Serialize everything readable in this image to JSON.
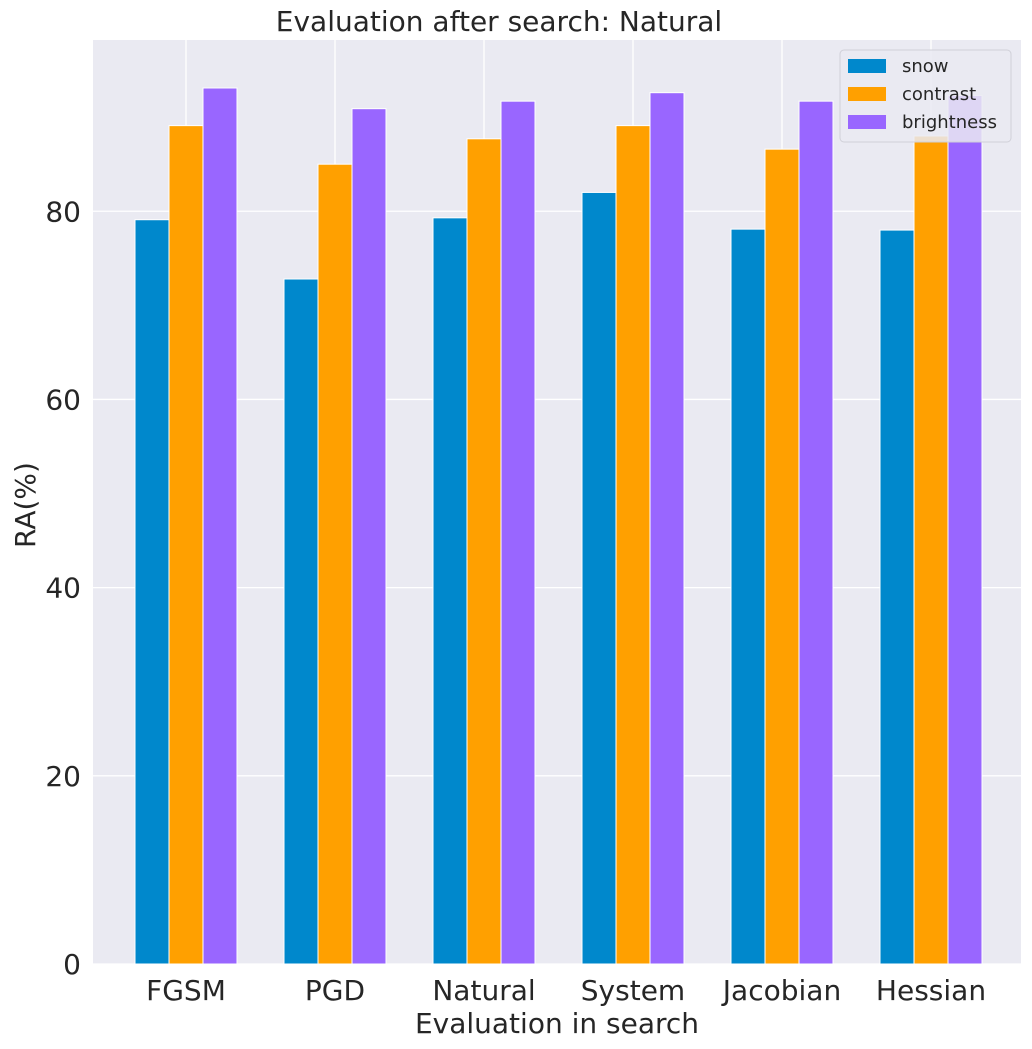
{
  "chart_data": {
    "type": "bar",
    "title": "Evaluation after search: Natural",
    "xlabel": "Evaluation in search",
    "ylabel": "RA(%)",
    "categories": [
      "FGSM",
      "PGD",
      "Natural",
      "System",
      "Jacobian",
      "Hessian"
    ],
    "yticks": [
      "0",
      "20",
      "40",
      "60",
      "80"
    ],
    "ylim": [
      0,
      98.2
    ],
    "grid": true,
    "legend_position": "top-right",
    "series": [
      {
        "name": "snow",
        "color": "#0088cc",
        "values": [
          79.1,
          72.8,
          79.3,
          82.0,
          78.1,
          78.0
        ]
      },
      {
        "name": "contrast",
        "color": "#ffa000",
        "values": [
          89.1,
          85.0,
          87.7,
          89.1,
          86.6,
          88.0
        ]
      },
      {
        "name": "brightness",
        "color": "#9966ff",
        "values": [
          93.1,
          90.9,
          91.7,
          92.6,
          91.7,
          92.3
        ]
      }
    ]
  }
}
